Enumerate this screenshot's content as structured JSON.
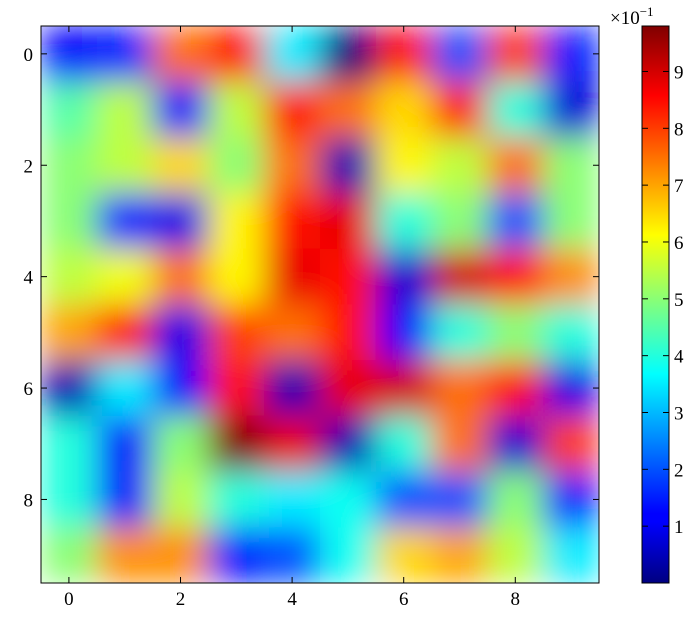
{
  "chart_data": {
    "type": "heatmap",
    "colormap": "jet",
    "values": [
      [
        0.12,
        0.15,
        0.75,
        0.85,
        0.35,
        0.0,
        0.85,
        0.2,
        0.8,
        0.15
      ],
      [
        0.45,
        0.55,
        0.12,
        0.55,
        0.85,
        0.75,
        0.65,
        0.85,
        0.4,
        0.08
      ],
      [
        0.5,
        0.55,
        0.65,
        0.5,
        0.75,
        0.05,
        0.62,
        0.55,
        0.75,
        0.5
      ],
      [
        0.5,
        0.15,
        0.1,
        0.62,
        0.85,
        0.88,
        0.4,
        0.5,
        0.2,
        0.5
      ],
      [
        0.55,
        0.6,
        0.75,
        0.62,
        0.88,
        0.85,
        0.08,
        0.9,
        0.85,
        0.72
      ],
      [
        0.7,
        0.85,
        0.1,
        0.8,
        0.75,
        0.85,
        0.12,
        0.4,
        0.5,
        0.4
      ],
      [
        0.05,
        0.35,
        0.12,
        0.85,
        0.05,
        0.88,
        0.9,
        0.75,
        0.85,
        0.1
      ],
      [
        0.4,
        0.12,
        0.5,
        0.98,
        0.88,
        0.05,
        0.4,
        0.75,
        0.08,
        0.8
      ],
      [
        0.4,
        0.12,
        0.55,
        0.4,
        0.35,
        0.38,
        0.2,
        0.2,
        0.5,
        0.15
      ],
      [
        0.5,
        0.72,
        0.72,
        0.15,
        0.2,
        0.38,
        0.65,
        0.7,
        0.55,
        0.35
      ]
    ],
    "xlim": [
      -0.5,
      9.5
    ],
    "ylim": [
      9.5,
      -0.5
    ],
    "xticks": [
      0,
      2,
      4,
      6,
      8
    ],
    "yticks": [
      0,
      2,
      4,
      6,
      8
    ],
    "clim": [
      0.0,
      0.98
    ],
    "cticks": [
      {
        "value": 0.1,
        "label": "1"
      },
      {
        "value": 0.2,
        "label": "2"
      },
      {
        "value": 0.3,
        "label": "3"
      },
      {
        "value": 0.4,
        "label": "4"
      },
      {
        "value": 0.5,
        "label": "5"
      },
      {
        "value": 0.6,
        "label": "6"
      },
      {
        "value": 0.7,
        "label": "7"
      },
      {
        "value": 0.8,
        "label": "8"
      },
      {
        "value": 0.9,
        "label": "9"
      }
    ],
    "colorbar_multiplier": {
      "base": "×10",
      "exponent": "−1"
    }
  }
}
